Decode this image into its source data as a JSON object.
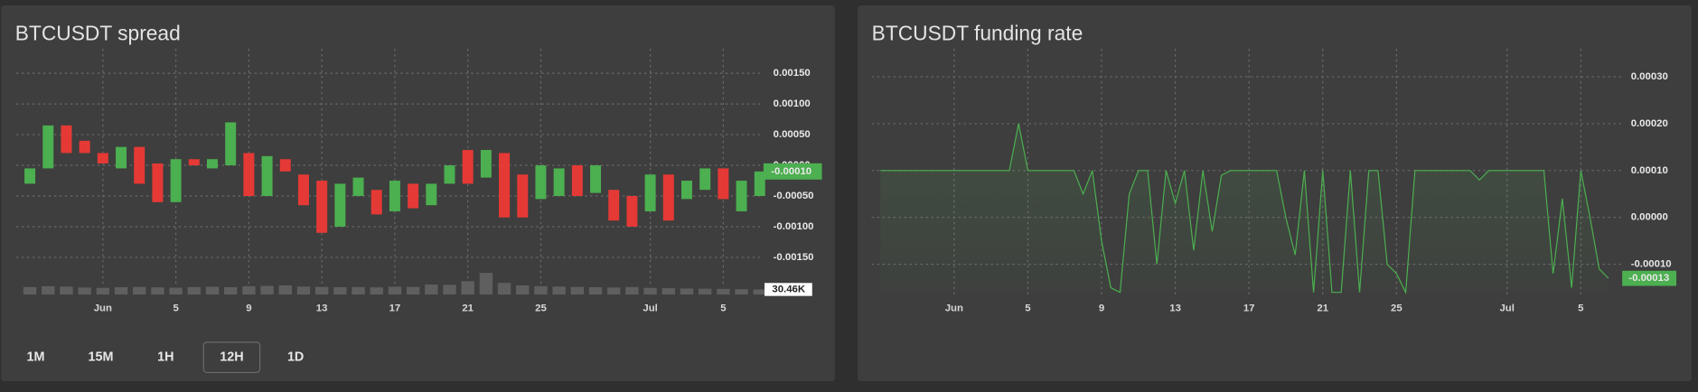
{
  "chart_data": [
    {
      "type": "candlestick",
      "title": "BTCUSDT spread",
      "categories": [
        null,
        null,
        null,
        null,
        "Jun",
        null,
        null,
        null,
        "5",
        null,
        null,
        null,
        "9",
        null,
        null,
        null,
        "13",
        null,
        null,
        null,
        "17",
        null,
        null,
        null,
        "21",
        null,
        null,
        null,
        "25",
        null,
        null,
        null,
        null,
        null,
        "Jul",
        null,
        null,
        null,
        "5",
        null,
        null
      ],
      "open": [
        -0.0003,
        -5e-05,
        0.00065,
        0.0004,
        0.0002,
        -5e-05,
        0.0003,
        3e-05,
        -0.0006,
        0.0001,
        -5e-05,
        0.0,
        0.0002,
        -0.0005,
        0.0001,
        -0.00015,
        -0.00025,
        -0.001,
        -0.0005,
        -0.0004,
        -0.00075,
        -0.0003,
        -0.00065,
        -0.0003,
        0.00025,
        -0.0002,
        0.0002,
        -0.00015,
        -0.00055,
        -0.0005,
        0.0,
        -0.00045,
        -0.0004,
        -0.0005,
        -0.00075,
        -0.00015,
        -0.00055,
        -0.0004,
        -5e-05,
        -0.00075,
        -0.0005
      ],
      "close": [
        -5e-05,
        0.00065,
        0.0002,
        0.0002,
        3e-05,
        0.0003,
        -0.0003,
        -0.0006,
        0.0001,
        0.0,
        0.0001,
        0.0007,
        -0.0005,
        0.00015,
        -0.0001,
        -0.00065,
        -0.0011,
        -0.0003,
        -0.0002,
        -0.0008,
        -0.00025,
        -0.0007,
        -0.0003,
        0.0,
        -0.0003,
        0.00025,
        -0.00085,
        -0.00085,
        0.0,
        -5e-05,
        -0.0005,
        0.0,
        -0.0009,
        -0.001,
        -0.00015,
        -0.0009,
        -0.00025,
        -5e-05,
        -0.00055,
        -0.00025,
        -0.0001
      ],
      "last_label": "-0.00010",
      "up_color": "#4caf50",
      "down_color": "#e53935",
      "volume": {
        "values": [
          45000,
          50000,
          48000,
          42000,
          40000,
          44000,
          46000,
          43000,
          41000,
          45000,
          47000,
          44000,
          50000,
          52000,
          55000,
          48000,
          46000,
          44000,
          45000,
          43000,
          47000,
          46000,
          60000,
          58000,
          80000,
          130000,
          70000,
          55000,
          50000,
          48000,
          46000,
          44000,
          42000,
          45000,
          40000,
          38000,
          36000,
          35000,
          34000,
          32000,
          30460
        ],
        "last_label": "30.46K",
        "color": "#5f5f5f"
      },
      "ylim": [
        -0.0017,
        0.0019
      ],
      "yticks": [
        {
          "value": 0.0015,
          "label": "0.00150"
        },
        {
          "value": 0.001,
          "label": "0.00100"
        },
        {
          "value": 0.0005,
          "label": "0.00050"
        },
        {
          "value": 0.0,
          "label": "0.00000"
        },
        {
          "value": -0.0005,
          "label": "-0.00050"
        },
        {
          "value": -0.001,
          "label": "-0.00100"
        },
        {
          "value": -0.0015,
          "label": "-0.00150"
        }
      ],
      "grid": true
    },
    {
      "type": "line",
      "title": "BTCUSDT funding rate",
      "categories": [
        null,
        null,
        null,
        null,
        null,
        null,
        null,
        null,
        "Jun",
        null,
        null,
        null,
        null,
        null,
        null,
        null,
        "5",
        null,
        null,
        null,
        null,
        null,
        null,
        null,
        "9",
        null,
        null,
        null,
        null,
        null,
        null,
        null,
        "13",
        null,
        null,
        null,
        null,
        null,
        null,
        null,
        "17",
        null,
        null,
        null,
        null,
        null,
        null,
        null,
        "21",
        null,
        null,
        null,
        null,
        null,
        null,
        null,
        "25",
        null,
        null,
        null,
        null,
        null,
        null,
        null,
        null,
        null,
        null,
        null,
        "Jul",
        null,
        null,
        null,
        null,
        null,
        null,
        null,
        "5",
        null,
        null,
        null
      ],
      "values": [
        0.0001,
        0.0001,
        0.0001,
        0.0001,
        0.0001,
        0.0001,
        0.0001,
        0.0001,
        0.0001,
        0.0001,
        0.0001,
        0.0001,
        0.0001,
        0.0001,
        0.0001,
        0.0002,
        0.0001,
        0.0001,
        0.0001,
        0.0001,
        0.0001,
        0.0001,
        5e-05,
        0.0001,
        -5e-05,
        -0.00015,
        -0.00016,
        5e-05,
        0.0001,
        0.0001,
        -0.0001,
        0.0001,
        3e-05,
        0.0001,
        -7e-05,
        0.0001,
        -3e-05,
        9e-05,
        0.0001,
        0.0001,
        0.0001,
        0.0001,
        0.0001,
        0.0001,
        0.0,
        -8e-05,
        0.0001,
        -0.00016,
        0.0001,
        -0.00016,
        -0.00016,
        0.0001,
        -0.00016,
        0.0001,
        0.0001,
        -0.0001,
        -0.00012,
        -0.00016,
        0.0001,
        0.0001,
        0.0001,
        0.0001,
        0.0001,
        0.0001,
        0.0001,
        8e-05,
        0.0001,
        0.0001,
        0.0001,
        0.0001,
        0.0001,
        0.0001,
        0.0001,
        -0.00012,
        4e-05,
        -0.00015,
        0.0001,
        0.0,
        -0.00011,
        -0.00013
      ],
      "last_label": "-0.00013",
      "color": "#4caf50",
      "ylim": [
        -0.00016,
        0.00036
      ],
      "yticks": [
        {
          "value": 0.0003,
          "label": "0.00030"
        },
        {
          "value": 0.0002,
          "label": "0.00020"
        },
        {
          "value": 0.0001,
          "label": "0.00010"
        },
        {
          "value": 0.0,
          "label": "0.00000"
        },
        {
          "value": -0.0001,
          "label": "-0.00010"
        }
      ],
      "grid": true
    }
  ],
  "intervals": [
    "1M",
    "15M",
    "1H",
    "12H",
    "1D"
  ],
  "selected_interval": 3
}
